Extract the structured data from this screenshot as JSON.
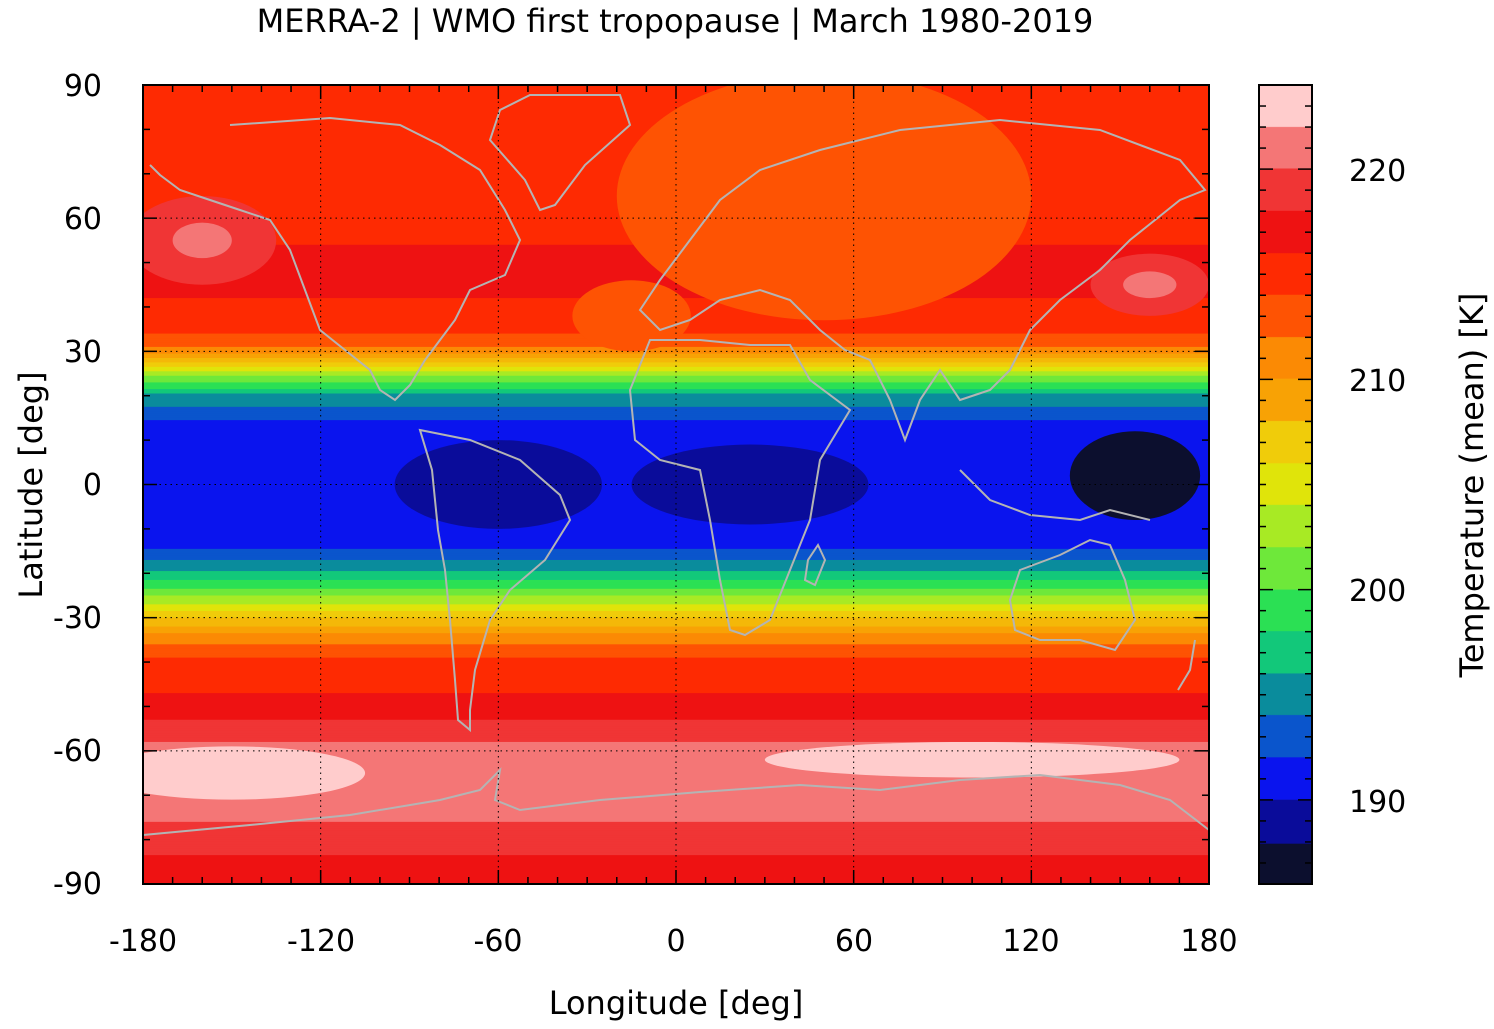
{
  "title": "MERRA-2 | WMO first tropopause | March 1980-2019",
  "chart_data": {
    "type": "heatmap",
    "title": "MERRA-2 | WMO first tropopause | March 1980-2019",
    "xlabel": "Longitude [deg]",
    "ylabel": "Latitude [deg]",
    "colorbar_label": "Temperature (mean) [K]",
    "xlim": [
      -180,
      180
    ],
    "ylim": [
      -90,
      90
    ],
    "x_ticks": [
      "-180",
      "-120",
      "-60",
      "0",
      "60",
      "120",
      "180"
    ],
    "y_ticks": [
      "90",
      "60",
      "30",
      "0",
      "-30",
      "-60",
      "-90"
    ],
    "colorbar_ticks": [
      "220",
      "210",
      "200",
      "190"
    ],
    "colorbar_range": [
      186,
      224
    ],
    "grid": true,
    "coastlines": true,
    "color_levels": [
      "#0c0f2e",
      "#0a0c9a",
      "#0a14ee",
      "#0a55cc",
      "#0a8c9c",
      "#12c87a",
      "#2be054",
      "#6ee83a",
      "#a8ea24",
      "#e0e40a",
      "#f0cc0a",
      "#f4b808",
      "#f8a205",
      "#fb8a04",
      "#fe5303",
      "#fe2a02",
      "#ee1212",
      "#f03535",
      "#f47676",
      "#ffcccc"
    ],
    "zonal_mean_profile": {
      "lat": [
        90,
        75,
        60,
        45,
        35,
        30,
        25,
        20,
        15,
        10,
        0,
        -10,
        -15,
        -20,
        -25,
        -30,
        -35,
        -40,
        -50,
        -60,
        -70,
        -80,
        -90
      ],
      "temperature_K": [
        216,
        216,
        216,
        217,
        215,
        212,
        202,
        195,
        192,
        190,
        190,
        190,
        192,
        196,
        201,
        207,
        212,
        215,
        217,
        221,
        222,
        219,
        217
      ]
    }
  }
}
